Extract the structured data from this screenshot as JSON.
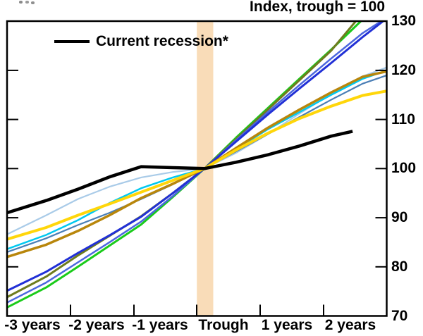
{
  "title": "Index, trough = 100",
  "legend": {
    "label": "Current recession*"
  },
  "y_axis": {
    "labels": [
      "130",
      "120",
      "110",
      "100",
      "90",
      "80",
      "70"
    ]
  },
  "x_axis": {
    "labels": [
      "-3 years",
      "-2 years",
      "-1 years",
      "Trough",
      "1 years",
      "2 years"
    ]
  },
  "chart_data": {
    "type": "line",
    "title": "Index, trough = 100",
    "x_unit": "years_relative_to_trough",
    "xlim": [
      -3.12,
      2.88
    ],
    "ylim": [
      70,
      130
    ],
    "y_ticks": [
      70,
      80,
      90,
      100,
      110,
      120,
      130
    ],
    "x_tick_labels": [
      "-3 years",
      "-2 years",
      "-1 years",
      "Trough",
      "1 years",
      "2 years"
    ],
    "grid": false,
    "legend_position": "top-left-inside",
    "trough_band": {
      "x_from": -0.12,
      "x_to": 0.14,
      "color": "#F9DCB8"
    },
    "series": [
      {
        "name": "pale-blue",
        "color": "#A9CBE8",
        "width": 2.2,
        "x": [
          -3.12,
          -2.5,
          -2,
          -1.5,
          -1,
          -0.5,
          0,
          0.5,
          1,
          1.5,
          2,
          2.5,
          2.88
        ],
        "values": [
          86.6,
          90.5,
          93.8,
          96.3,
          98.2,
          99.3,
          100,
          103.2,
          107,
          111.2,
          115.2,
          118.8,
          120.6
        ]
      },
      {
        "name": "steel-blue",
        "color": "#4A7EB5",
        "width": 2.2,
        "x": [
          -3.12,
          -2.5,
          -2,
          -1.5,
          -1,
          -0.5,
          0,
          0.5,
          1,
          1.5,
          2,
          2.5,
          2.88
        ],
        "values": [
          83.0,
          85.8,
          88.5,
          91.0,
          93.8,
          96.8,
          100,
          103.5,
          107,
          110.5,
          114,
          117.3,
          119.0
        ]
      },
      {
        "name": "cyan",
        "color": "#00C8F0",
        "width": 2.5,
        "x": [
          -3.12,
          -2.5,
          -2,
          -1.5,
          -1,
          -0.5,
          0,
          0.5,
          1,
          1.5,
          2,
          2.5,
          2.88
        ],
        "values": [
          83.6,
          86.5,
          89.5,
          93.0,
          96.0,
          98.2,
          100,
          104,
          108,
          111.5,
          115,
          118.3,
          120.0
        ]
      },
      {
        "name": "green",
        "color": "#1ACB1A",
        "width": 3,
        "x": [
          -3.12,
          -2.5,
          -2,
          -1.5,
          -1,
          -0.5,
          0,
          0.5,
          1,
          1.5,
          2,
          2.47
        ],
        "values": [
          71.7,
          75.8,
          80.0,
          84.3,
          88.6,
          94.2,
          100,
          106.3,
          112.3,
          118.3,
          124.2,
          130
        ]
      },
      {
        "name": "olive",
        "color": "#6E7C1E",
        "width": 3,
        "x": [
          -3.12,
          -2.5,
          -2,
          -1.5,
          -1,
          -0.5,
          0,
          0.5,
          1,
          1.5,
          2,
          2.39
        ],
        "values": [
          73.8,
          78.0,
          82.3,
          86.3,
          90.3,
          95.0,
          100,
          106,
          112,
          118,
          124,
          130
        ]
      },
      {
        "name": "royal-blue",
        "color": "#4B66DE",
        "width": 2.5,
        "x": [
          -3.12,
          -2.5,
          -2,
          -1.5,
          -1,
          -0.5,
          0,
          0.5,
          1,
          1.5,
          2,
          2.5,
          2.79
        ],
        "values": [
          72.7,
          76.8,
          80.9,
          85.0,
          89.2,
          94.4,
          100,
          105.8,
          111.5,
          117,
          122.4,
          127.6,
          130
        ]
      },
      {
        "name": "blue",
        "color": "#2130D6",
        "width": 3,
        "x": [
          -3.12,
          -2.5,
          -2,
          -1.5,
          -1,
          -0.5,
          0,
          0.5,
          1,
          1.5,
          2,
          2.5,
          2.82
        ],
        "values": [
          75.1,
          79.0,
          82.8,
          86.4,
          90.2,
          95.0,
          100,
          105.5,
          111,
          116.3,
          121.5,
          126.8,
          130
        ]
      },
      {
        "name": "dark-goldenrod",
        "color": "#B8860B",
        "width": 3.5,
        "x": [
          -3.12,
          -2.5,
          -2,
          -1.5,
          -1,
          -0.5,
          0,
          0.5,
          1,
          1.5,
          2,
          2.5,
          2.88
        ],
        "values": [
          82.0,
          84.5,
          87.3,
          90.5,
          94.0,
          96.9,
          100,
          104.2,
          108.3,
          112,
          115.5,
          118.7,
          119.8
        ]
      },
      {
        "name": "yellow",
        "color": "#FFD60A",
        "width": 4,
        "x": [
          -3.12,
          -2.5,
          -2,
          -1.5,
          -1,
          -0.5,
          0,
          0.5,
          1,
          1.5,
          2,
          2.5,
          2.88
        ],
        "values": [
          85.6,
          88.0,
          90.5,
          92.8,
          95.2,
          97.6,
          100,
          103.8,
          107.2,
          110.2,
          112.7,
          114.9,
          115.8
        ]
      },
      {
        "name": "current-recession",
        "color": "#000000",
        "width": 4.5,
        "x": [
          -3.12,
          -2.5,
          -2,
          -1.5,
          -1,
          -0.5,
          0,
          0.5,
          1,
          1.5,
          2,
          2.34
        ],
        "values": [
          91.0,
          93.5,
          95.8,
          98.3,
          100.4,
          100.2,
          100,
          101.3,
          102.8,
          104.6,
          106.6,
          107.6
        ]
      }
    ]
  }
}
